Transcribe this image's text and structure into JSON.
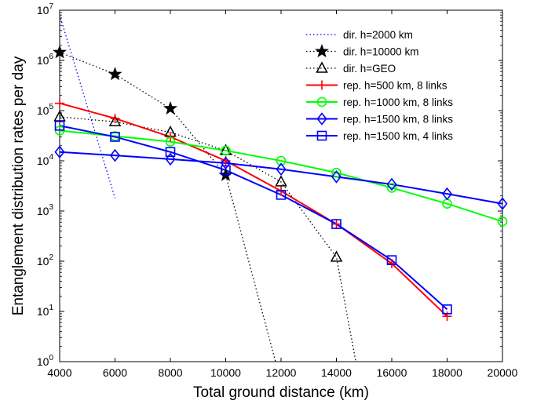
{
  "chart_data": {
    "type": "line",
    "xlabel": "Total ground distance (km)",
    "ylabel": "Entanglement distribution rates per day",
    "x_ticks": [
      4000,
      6000,
      8000,
      10000,
      12000,
      14000,
      16000,
      18000,
      20000
    ],
    "y_ticks": [
      {
        "base": "10",
        "exp": "0",
        "value": 1
      },
      {
        "base": "10",
        "exp": "1",
        "value": 10
      },
      {
        "base": "10",
        "exp": "2",
        "value": 100
      },
      {
        "base": "10",
        "exp": "3",
        "value": 1000
      },
      {
        "base": "10",
        "exp": "4",
        "value": 10000
      },
      {
        "base": "10",
        "exp": "5",
        "value": 100000
      },
      {
        "base": "10",
        "exp": "6",
        "value": 1000000
      },
      {
        "base": "10",
        "exp": "7",
        "value": 10000000
      }
    ],
    "xlim": [
      4000,
      20000
    ],
    "ylim": [
      1,
      10000000
    ],
    "yscale": "log",
    "grid": false,
    "legend_position": "top-right",
    "series": [
      {
        "name": "dir. h=2000 km",
        "color": "#0000ff",
        "line": "dotted",
        "marker": "none",
        "x": [
          4000,
          6000
        ],
        "y": [
          8000000,
          1800
        ]
      },
      {
        "name": "dir. h=10000 km",
        "color": "#000000",
        "line": "dotted",
        "marker": "star",
        "x": [
          4000,
          6000,
          8000,
          10000,
          11800
        ],
        "y": [
          1450000,
          530000,
          110000,
          5200,
          1
        ]
      },
      {
        "name": "dir. h=GEO",
        "color": "#000000",
        "line": "dotted",
        "marker": "triangle",
        "x": [
          4000,
          6000,
          8000,
          10000,
          12000,
          14000,
          14700
        ],
        "y": [
          75000,
          60000,
          37000,
          16000,
          3800,
          120,
          1
        ]
      },
      {
        "name": "rep. h=500 km, 8 links",
        "color": "#ff0000",
        "line": "solid",
        "marker": "plus",
        "x": [
          4000,
          6000,
          8000,
          10000,
          12000,
          14000,
          16000,
          18000
        ],
        "y": [
          140000,
          70000,
          30000,
          10000,
          2500,
          550,
          90,
          8
        ]
      },
      {
        "name": "rep. h=1000 km, 8 links",
        "color": "#00ff00",
        "line": "solid",
        "marker": "circle",
        "x": [
          4000,
          6000,
          8000,
          10000,
          12000,
          14000,
          16000,
          18000,
          20000
        ],
        "y": [
          40000,
          31000,
          24000,
          16000,
          10000,
          5800,
          2900,
          1400,
          620
        ]
      },
      {
        "name": "rep. h=1500 km, 8 links",
        "color": "#0000ff",
        "line": "solid",
        "marker": "diamond",
        "x": [
          4000,
          6000,
          8000,
          10000,
          12000,
          14000,
          16000,
          18000,
          20000
        ],
        "y": [
          15000,
          12800,
          10800,
          9000,
          6800,
          4800,
          3400,
          2200,
          1400
        ]
      },
      {
        "name": "rep. h=1500 km, 4 links",
        "color": "#0000ff",
        "line": "solid",
        "marker": "square",
        "x": [
          4000,
          6000,
          8000,
          10000,
          12000,
          14000,
          16000,
          18000
        ],
        "y": [
          50000,
          30000,
          15000,
          6500,
          2100,
          550,
          105,
          11
        ]
      }
    ]
  }
}
